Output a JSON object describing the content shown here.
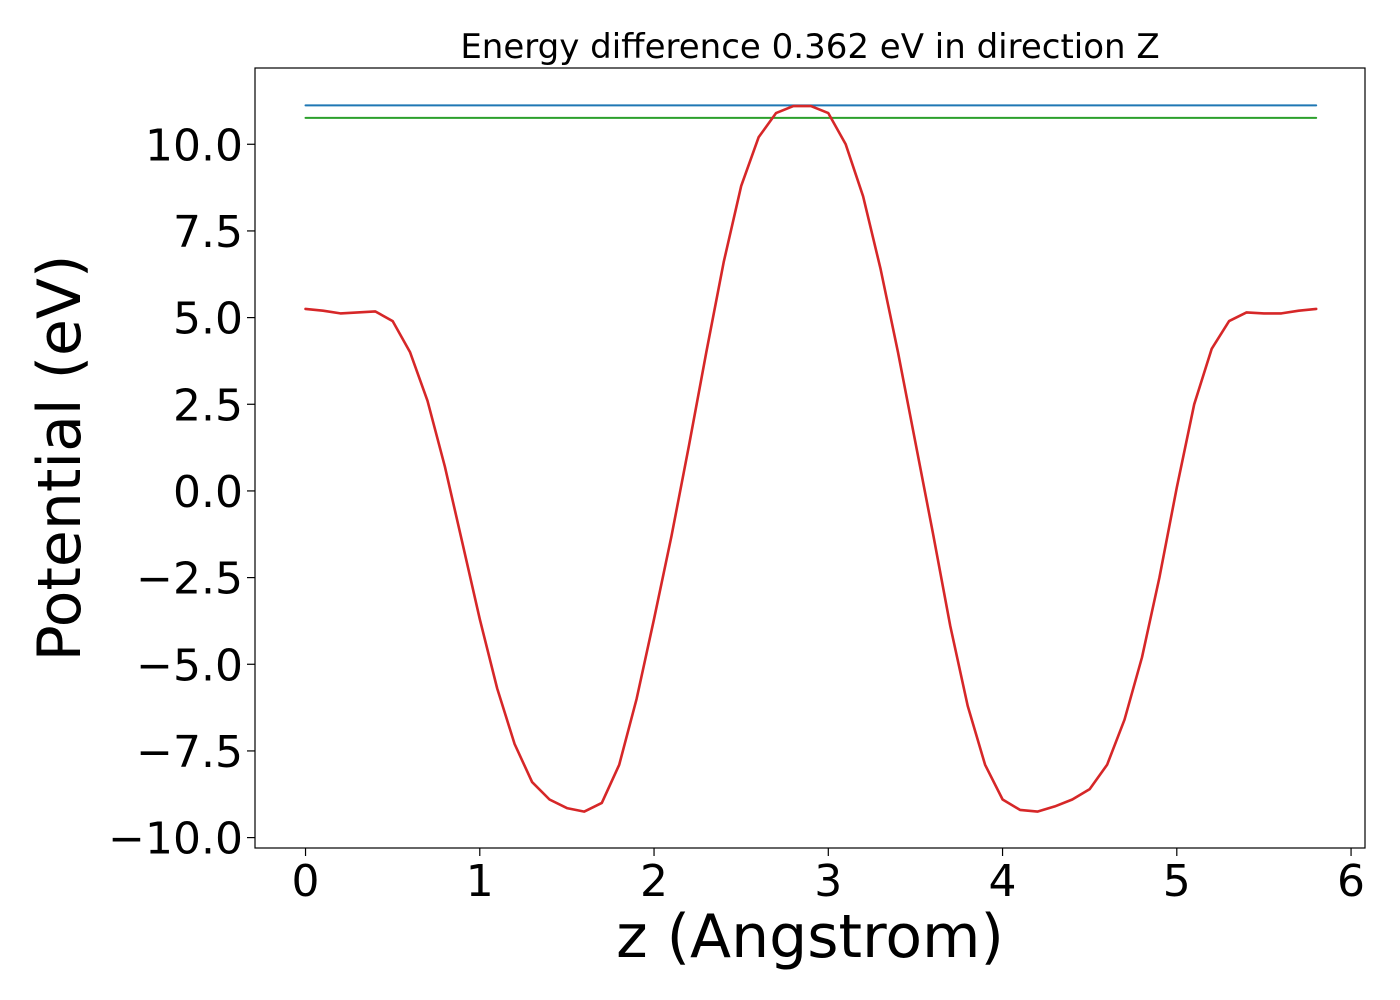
{
  "chart_data": {
    "type": "line",
    "title": "Energy difference 0.362 eV in direction Z",
    "xlabel": "z (Angstrom)",
    "ylabel": "Potential (eV)",
    "xlim": [
      -0.29,
      6.08
    ],
    "ylim": [
      -10.3,
      12.2
    ],
    "xticks": [
      0,
      1,
      2,
      3,
      4,
      5,
      6
    ],
    "xtick_labels": [
      "0",
      "1",
      "2",
      "3",
      "4",
      "5",
      "6"
    ],
    "yticks": [
      10.0,
      7.5,
      5.0,
      2.5,
      0.0,
      -2.5,
      -5.0,
      -7.5,
      -10.0
    ],
    "ytick_labels": [
      "10.0",
      "7.5",
      "5.0",
      "2.5",
      "0.0",
      "−2.5",
      "−5.0",
      "−7.5",
      "−10.0"
    ],
    "grid": false,
    "legend": "none",
    "series": [
      {
        "color": "#1f77b4",
        "x": [
          0,
          5.8
        ],
        "y": [
          11.12,
          11.12
        ]
      },
      {
        "color": "#2ca02c",
        "x": [
          0,
          5.8
        ],
        "y": [
          10.76,
          10.76
        ]
      },
      {
        "color": "#d62728",
        "x": [
          0.0,
          0.1,
          0.2,
          0.3,
          0.4,
          0.5,
          0.6,
          0.7,
          0.8,
          0.9,
          1.0,
          1.1,
          1.2,
          1.3,
          1.4,
          1.5,
          1.6,
          1.7,
          1.8,
          1.9,
          2.0,
          2.1,
          2.2,
          2.3,
          2.4,
          2.5,
          2.6,
          2.7,
          2.8,
          2.9,
          3.0,
          3.1,
          3.2,
          3.3,
          3.4,
          3.5,
          3.6,
          3.7,
          3.8,
          3.9,
          4.0,
          4.1,
          4.2,
          4.3,
          4.4,
          4.5,
          4.6,
          4.7,
          4.8,
          4.9,
          5.0,
          5.1,
          5.2,
          5.3,
          5.4,
          5.5,
          5.6,
          5.7,
          5.8
        ],
        "y": [
          5.25,
          5.2,
          5.12,
          5.15,
          5.18,
          4.9,
          4.0,
          2.6,
          0.7,
          -1.5,
          -3.7,
          -5.7,
          -7.3,
          -8.4,
          -8.9,
          -9.15,
          -9.25,
          -9.0,
          -7.9,
          -6.0,
          -3.7,
          -1.3,
          1.3,
          4.0,
          6.6,
          8.8,
          10.2,
          10.9,
          11.1,
          11.1,
          10.9,
          10.0,
          8.5,
          6.4,
          4.0,
          1.4,
          -1.2,
          -3.9,
          -6.2,
          -7.9,
          -8.9,
          -9.2,
          -9.25,
          -9.1,
          -8.9,
          -8.6,
          -7.9,
          -6.6,
          -4.8,
          -2.5,
          0.1,
          2.5,
          4.1,
          4.9,
          5.15,
          5.12,
          5.12,
          5.2,
          5.25
        ]
      }
    ]
  }
}
